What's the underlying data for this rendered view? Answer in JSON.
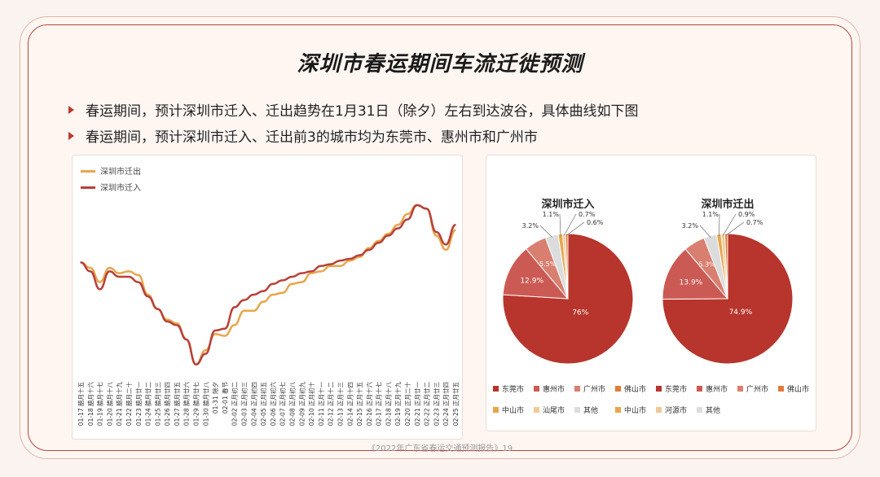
{
  "title": "深圳市春运期间车流迁徙预测",
  "bullets": [
    "春运期间，预计深圳市迁入、迁出趋势在1月31日（除夕）左右到达波谷，具体曲线如下图",
    "春运期间，预计深圳市迁入、迁出前3的城市均为东莞市、惠州市和广州市"
  ],
  "footer": "《2022年广东省春运交通预测报告》19",
  "colors": {
    "out": "#e8a64c",
    "in": "#b8403a",
    "frame": "#b7473a"
  },
  "chart_data": [
    {
      "type": "line",
      "title": "",
      "xlabel": "",
      "ylabel": "",
      "legend": "top-left",
      "categories": [
        "01-17 腊月十五",
        "01-18 腊月十六",
        "01-19 腊月十七",
        "01-20 腊月十八",
        "01-21 腊月十九",
        "01-22 腊月二十",
        "01-23 腊月廿一",
        "01-24 腊月廿二",
        "01-25 腊月廿三",
        "01-26 腊月廿四",
        "01-27 腊月廿五",
        "01-28 腊月廿六",
        "01-29 腊月廿七",
        "01-30 腊月廿八",
        "01-31 除夕",
        "02-01 春节",
        "02-02 正月初二",
        "02-03 正月初三",
        "02-04 正月初四",
        "02-05 正月初五",
        "02-06 正月初六",
        "02-07 正月初七",
        "02-08 正月初八",
        "02-09 正月初九",
        "02-10 正月初十",
        "02-11 正月十一",
        "02-12 正月十二",
        "02-13 正月十三",
        "02-14 正月十四",
        "02-15 正月十五",
        "02-16 正月十六",
        "02-17 正月十七",
        "02-18 正月十八",
        "02-19 正月十九",
        "02-20 正月二十",
        "02-21 正月廿一",
        "02-22 正月廿二",
        "02-23 正月廿三",
        "02-24 正月廿四",
        "02-25 正月廿五"
      ],
      "series": [
        {
          "name": "深圳市迁出",
          "values": [
            63,
            60,
            52,
            60,
            57,
            58,
            56,
            45,
            37,
            31,
            29,
            20,
            6,
            14,
            23,
            22,
            28,
            36,
            36,
            41,
            45,
            46,
            51,
            52,
            57,
            58,
            61,
            61,
            64,
            66,
            71,
            75,
            79,
            84,
            90,
            95,
            93,
            78,
            70,
            81
          ]
        },
        {
          "name": "深圳市迁入",
          "values": [
            63,
            58,
            48,
            58,
            55,
            55,
            52,
            44,
            37,
            30,
            28,
            20,
            6,
            12,
            25,
            26,
            38,
            42,
            45,
            47,
            51,
            53,
            55,
            57,
            58,
            61,
            62,
            64,
            65,
            67,
            70,
            74,
            78,
            82,
            87,
            95,
            93,
            80,
            73,
            84
          ]
        }
      ]
    },
    {
      "type": "pie",
      "title": "深圳市迁入",
      "slices": [
        {
          "label": "东莞市",
          "value": 76,
          "text": "76%"
        },
        {
          "label": "惠州市",
          "value": 12.9,
          "text": "12.9%"
        },
        {
          "label": "广州市",
          "value": 5.5,
          "text": "5.5%"
        },
        {
          "label": "其他",
          "value": 3.2,
          "text": "3.2%"
        },
        {
          "label": "中山市",
          "value": 1.1,
          "text": "1.1%"
        },
        {
          "label": "汕尾市",
          "value": 0.7,
          "text": "0.7%"
        },
        {
          "label": "佛山市",
          "value": 0.6,
          "text": "0.6%"
        }
      ]
    },
    {
      "type": "pie",
      "title": "深圳市迁出",
      "slices": [
        {
          "label": "东莞市",
          "value": 74.9,
          "text": "74.9%"
        },
        {
          "label": "惠州市",
          "value": 13.9,
          "text": "13.9%"
        },
        {
          "label": "广州市",
          "value": 5.3,
          "text": "5.3%"
        },
        {
          "label": "其他",
          "value": 3.2,
          "text": "3.2%"
        },
        {
          "label": "中山市",
          "value": 1.1,
          "text": "1.1%"
        },
        {
          "label": "河源市",
          "value": 0.9,
          "text": "0.9%"
        },
        {
          "label": "佛山市",
          "value": 0.7,
          "text": "0.7%"
        }
      ]
    }
  ],
  "pie_legend": [
    {
      "label": "东莞市",
      "color": "#b7352c"
    },
    {
      "label": "惠州市",
      "color": "#cc5a54"
    },
    {
      "label": "广州市",
      "color": "#d97f70"
    },
    {
      "label": "佛山市",
      "color": "#e07b3c"
    },
    {
      "label": "东莞市",
      "color": "#b7352c"
    },
    {
      "label": "惠州市",
      "color": "#cc5a54"
    },
    {
      "label": "广州市",
      "color": "#d97f70"
    },
    {
      "label": "佛山市",
      "color": "#e07b3c"
    },
    {
      "label": "中山市",
      "color": "#e8a64c"
    },
    {
      "label": "汕尾市",
      "color": "#f0c99a"
    },
    {
      "label": "其他",
      "color": "#dcdcdc"
    },
    {
      "label": "中山市",
      "color": "#e8a64c"
    },
    {
      "label": "河源市",
      "color": "#f0c99a"
    },
    {
      "label": "其他",
      "color": "#dcdcdc"
    }
  ],
  "slice_colors": {
    "东莞市": "#b7352c",
    "惠州市": "#cc5a54",
    "广州市": "#d97f70",
    "其他": "#dcdcdc",
    "中山市": "#e8a64c",
    "汕尾市": "#f0c99a",
    "河源市": "#f0c99a",
    "佛山市": "#e07b3c"
  }
}
